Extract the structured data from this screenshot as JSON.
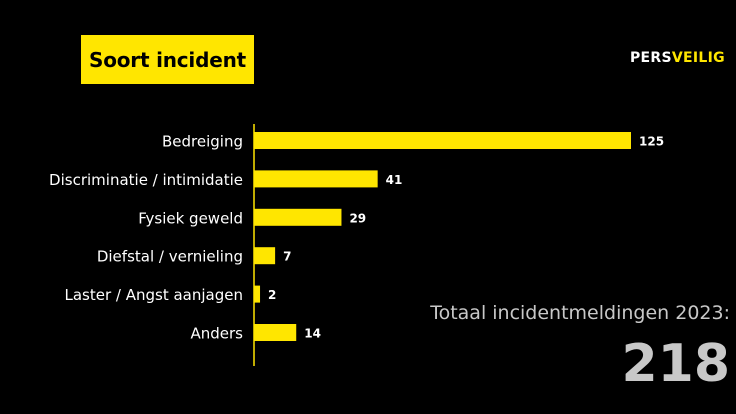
{
  "header": {
    "title": "Soort incident",
    "logo_part1": "PERS",
    "logo_part2": "VEILIG"
  },
  "summary": {
    "label": "Totaal incidentmeldingen 2023:",
    "value": "218"
  },
  "colors": {
    "background": "#000000",
    "accent": "#ffe600",
    "text": "#ffffff",
    "summary_text": "#c8c8c8"
  },
  "chart_data": {
    "type": "bar",
    "orientation": "horizontal",
    "title": "Soort incident",
    "categories": [
      "Bedreiging",
      "Discriminatie / intimidatie",
      "Fysiek geweld",
      "Diefstal / vernieling",
      "Laster / Angst aanjagen",
      "Anders"
    ],
    "values": [
      125,
      41,
      29,
      7,
      2,
      14
    ],
    "xlim": [
      0,
      125
    ],
    "grid": false,
    "legend": "none"
  }
}
